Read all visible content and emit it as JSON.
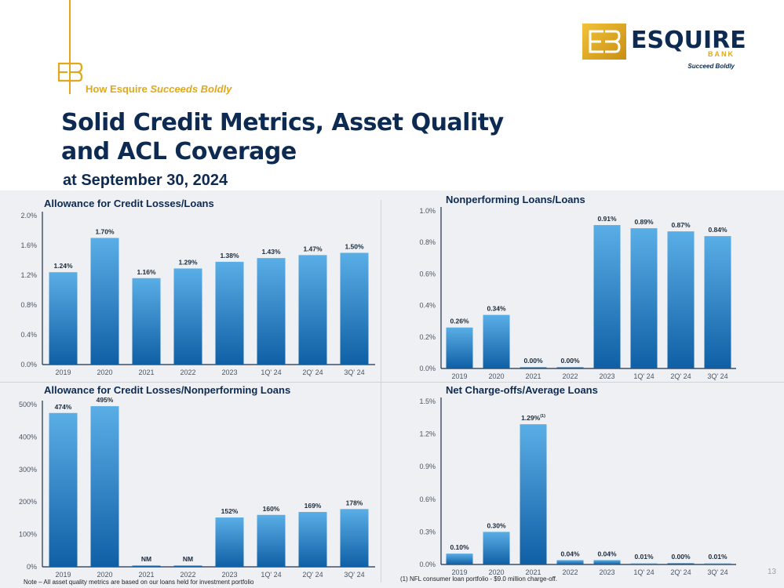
{
  "header": {
    "tagline_plain": "How Esquire ",
    "tagline_italic": "Succeeds Boldly",
    "title_line1": "Solid Credit Metrics, Asset Quality",
    "title_line2": "and ACL Coverage",
    "subtitle": "at September 30, 2024"
  },
  "logo": {
    "name": "ESQUIRE",
    "bank": "BANK",
    "tagline": "Succeed Boldly"
  },
  "colors": {
    "bar_top": "#5aaee6",
    "bar_bottom": "#0f5fa5",
    "title": "#0d2b52",
    "gold": "#e0a91c"
  },
  "chart_data": [
    {
      "type": "bar",
      "title": "Allowance for Credit Losses/Loans",
      "categories": [
        "2019",
        "2020",
        "2021",
        "2022",
        "2023",
        "1Q' 24",
        "2Q' 24",
        "3Q' 24"
      ],
      "values": [
        1.24,
        1.7,
        1.16,
        1.29,
        1.38,
        1.43,
        1.47,
        1.5
      ],
      "labels": [
        "1.24%",
        "1.70%",
        "1.16%",
        "1.29%",
        "1.38%",
        "1.43%",
        "1.47%",
        "1.50%"
      ],
      "yticks": [
        "0.0%",
        "0.4%",
        "0.8%",
        "1.2%",
        "1.6%",
        "2.0%"
      ],
      "ylim": [
        0,
        2.0
      ]
    },
    {
      "type": "bar",
      "title": "Nonperforming Loans/Loans",
      "categories": [
        "2019",
        "2020",
        "2021",
        "2022",
        "2023",
        "1Q' 24",
        "2Q' 24",
        "3Q' 24"
      ],
      "values": [
        0.26,
        0.34,
        0.0,
        0.0,
        0.91,
        0.89,
        0.87,
        0.84
      ],
      "labels": [
        "0.26%",
        "0.34%",
        "0.00%",
        "0.00%",
        "0.91%",
        "0.89%",
        "0.87%",
        "0.84%"
      ],
      "yticks": [
        "0.0%",
        "0.2%",
        "0.4%",
        "0.6%",
        "0.8%",
        "1.0%"
      ],
      "ylim": [
        0,
        1.0
      ]
    },
    {
      "type": "bar",
      "title": "Allowance for Credit Losses/Nonperforming Loans",
      "categories": [
        "2019",
        "2020",
        "2021",
        "2022",
        "2023",
        "1Q' 24",
        "2Q' 24",
        "3Q' 24"
      ],
      "values": [
        474,
        495,
        0,
        0,
        152,
        160,
        169,
        178
      ],
      "labels": [
        "474%",
        "495%",
        "NM",
        "NM",
        "152%",
        "160%",
        "169%",
        "178%"
      ],
      "yticks": [
        "0%",
        "100%",
        "200%",
        "300%",
        "400%",
        "500%"
      ],
      "ylim": [
        0,
        500
      ]
    },
    {
      "type": "bar",
      "title": "Net Charge-offs/Average Loans",
      "categories": [
        "2019",
        "2020",
        "2021",
        "2022",
        "2023",
        "1Q' 24",
        "2Q' 24",
        "3Q' 24"
      ],
      "values": [
        0.1,
        0.3,
        1.29,
        0.04,
        0.04,
        0.01,
        0.0,
        0.01
      ],
      "labels": [
        "0.10%",
        "0.30%",
        "1.29%",
        "0.04%",
        "0.04%",
        "0.01%",
        "0.00%",
        "0.01%"
      ],
      "label_superscripts": [
        "",
        "",
        "(1)",
        "",
        "",
        "",
        "",
        ""
      ],
      "yticks": [
        "0.0%",
        "0.3%",
        "0.6%",
        "0.9%",
        "1.2%",
        "1.5%"
      ],
      "ylim": [
        0,
        1.5
      ]
    }
  ],
  "notes": {
    "left": "Note – All asset quality metrics are based on our loans held for investment portfolio",
    "right": "(1) NFL consumer loan portfolio - $9.0 million charge-off."
  },
  "page_number": "13"
}
